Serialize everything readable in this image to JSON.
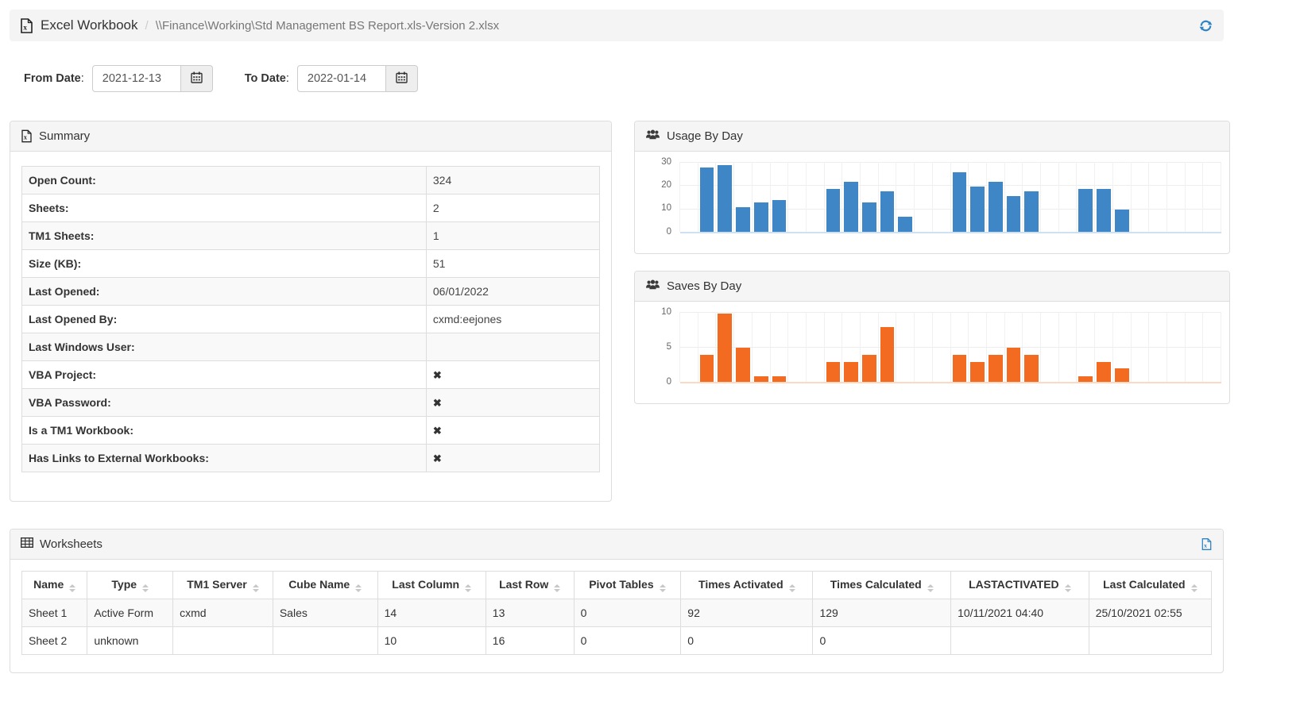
{
  "header": {
    "app_title": "Excel Workbook",
    "separator": "/",
    "file_path": "\\\\Finance\\Working\\Std Management BS Report.xls-Version 2.xlsx",
    "accent_blue": "#2d83c5"
  },
  "filters": {
    "from_label": "From Date",
    "from_value": "2021-12-13",
    "to_label": "To Date",
    "to_value": "2022-01-14",
    "calendar_icon": "calendar-icon"
  },
  "summary": {
    "title": "Summary",
    "rows": [
      {
        "label": "Open Count:",
        "value": "324"
      },
      {
        "label": "Sheets:",
        "value": "2"
      },
      {
        "label": "TM1 Sheets:",
        "value": "1"
      },
      {
        "label": "Size (KB):",
        "value": "51"
      },
      {
        "label": "Last Opened:",
        "value": "06/01/2022"
      },
      {
        "label": "Last Opened By:",
        "value": "cxmd:eejones"
      },
      {
        "label": "Last Windows User:",
        "value": ""
      },
      {
        "label": "VBA Project:",
        "value": "✖"
      },
      {
        "label": "VBA Password:",
        "value": "✖"
      },
      {
        "label": "Is a TM1 Workbook:",
        "value": "✖"
      },
      {
        "label": "Has Links to External Workbooks:",
        "value": "✖"
      }
    ]
  },
  "chart_data": [
    {
      "type": "bar",
      "title": "Usage By Day",
      "icon": "users-icon",
      "color": "#3e86c5",
      "axis_color": "#cde1f2",
      "ylim": [
        0,
        30
      ],
      "yticks": [
        0,
        10,
        20,
        30
      ],
      "xlabel": "",
      "ylabel": "",
      "legend": "none",
      "grid": true,
      "values": [
        0,
        27.5,
        28.5,
        10.5,
        12.5,
        13.5,
        0,
        0,
        18.5,
        21.5,
        12.5,
        17.5,
        6.5,
        0,
        0,
        25.5,
        19.5,
        21.5,
        15.5,
        17.5,
        0,
        0,
        18.5,
        18.5,
        9.5,
        0,
        0,
        0,
        0,
        0
      ]
    },
    {
      "type": "bar",
      "title": "Saves By Day",
      "icon": "users-icon",
      "color": "#f26b21",
      "axis_color": "#fbd9c2",
      "ylim": [
        0,
        10
      ],
      "yticks": [
        0,
        5,
        10
      ],
      "xlabel": "",
      "ylabel": "",
      "legend": "none",
      "grid": true,
      "values": [
        0,
        3.9,
        9.8,
        4.9,
        0.8,
        0.8,
        0,
        0,
        2.8,
        2.8,
        3.9,
        7.8,
        0,
        0,
        0,
        3.9,
        2.8,
        3.9,
        4.9,
        3.9,
        0,
        0,
        0.8,
        2.8,
        1.9,
        0,
        0,
        0,
        0,
        0
      ]
    }
  ],
  "worksheets": {
    "title": "Worksheets",
    "columns": [
      "Name",
      "Type",
      "TM1 Server",
      "Cube Name",
      "Last Column",
      "Last Row",
      "Pivot Tables",
      "Times Activated",
      "Times Calculated",
      "LASTACTIVATED",
      "Last Calculated"
    ],
    "col_widths": [
      "5.5%",
      "7.2%",
      "8.4%",
      "8.8%",
      "9.1%",
      "7.4%",
      "9.0%",
      "11.1%",
      "11.6%",
      "11.6%",
      "10.3%"
    ],
    "rows": [
      [
        "Sheet 1",
        "Active Form",
        "cxmd",
        "Sales",
        "14",
        "13",
        "0",
        "92",
        "129",
        "10/11/2021 04:40",
        "25/10/2021 02:55"
      ],
      [
        "Sheet 2",
        "unknown",
        "",
        "",
        "10",
        "16",
        "0",
        "0",
        "0",
        "",
        ""
      ]
    ]
  }
}
